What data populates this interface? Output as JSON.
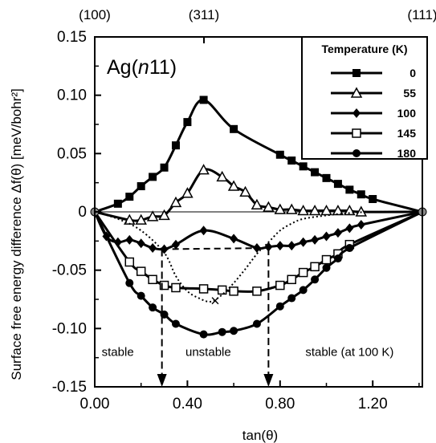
{
  "chart_data": {
    "type": "line",
    "sample_label_prefix": "Ag(",
    "sample_label_index": "n",
    "sample_label_suffix": "11)",
    "xlabel": "tan(θ)",
    "ylabel": "Surface free energy difference Δf(θ) [meV/bohr²]",
    "xlim": [
      0.0,
      1.4142
    ],
    "ylim": [
      -0.15,
      0.15
    ],
    "x_ticks": [
      {
        "value": 0.0,
        "label": "0.00"
      },
      {
        "value": 0.4,
        "label": "0.40"
      },
      {
        "value": 0.8,
        "label": "0.80"
      },
      {
        "value": 1.2,
        "label": "1.20"
      }
    ],
    "y_ticks": [
      {
        "value": 0.15,
        "label": "0.15"
      },
      {
        "value": 0.1,
        "label": "0.10"
      },
      {
        "value": 0.05,
        "label": "0.05"
      },
      {
        "value": 0.0,
        "label": "0"
      },
      {
        "value": -0.05,
        "label": "-0.05"
      },
      {
        "value": -0.1,
        "label": "-0.10"
      },
      {
        "value": -0.15,
        "label": "-0.15"
      }
    ],
    "top_labels": [
      {
        "x": 0.0,
        "label": "(100)"
      },
      {
        "x": 0.4714,
        "label": "(311)"
      },
      {
        "x": 1.4142,
        "label": "(111)"
      }
    ],
    "legend": {
      "title": "Temperature (K)",
      "position": "top-right"
    },
    "series": [
      {
        "name": "0",
        "marker": "square-filled",
        "style": "solid",
        "stroke_width": 3,
        "x": [
          0.0,
          0.1,
          0.15,
          0.2,
          0.25,
          0.3,
          0.35,
          0.4,
          0.47,
          0.6,
          0.8,
          0.85,
          0.9,
          0.95,
          1.0,
          1.05,
          1.1,
          1.15,
          1.2,
          1.4142
        ],
        "y": [
          0.0,
          0.007,
          0.013,
          0.022,
          0.03,
          0.038,
          0.057,
          0.077,
          0.096,
          0.071,
          0.049,
          0.044,
          0.039,
          0.034,
          0.029,
          0.024,
          0.019,
          0.015,
          0.011,
          0.0
        ]
      },
      {
        "name": "55",
        "marker": "triangle-open",
        "style": "solid",
        "stroke_width": 3,
        "x": [
          0.0,
          0.15,
          0.2,
          0.25,
          0.3,
          0.35,
          0.4,
          0.47,
          0.55,
          0.6,
          0.65,
          0.7,
          0.75,
          0.8,
          0.85,
          0.9,
          0.95,
          1.0,
          1.05,
          1.1,
          1.15,
          1.4142
        ],
        "y": [
          0.0,
          -0.007,
          -0.007,
          -0.004,
          -0.003,
          0.008,
          0.016,
          0.036,
          0.03,
          0.022,
          0.017,
          0.006,
          0.004,
          0.002,
          0.002,
          0.001,
          0.001,
          0.001,
          0.001,
          0.001,
          0.0,
          0.0
        ]
      },
      {
        "name": "100",
        "marker": "diamond-filled",
        "style": "solid",
        "stroke_width": 3,
        "x": [
          0.0,
          0.05,
          0.1,
          0.15,
          0.2,
          0.25,
          0.3,
          0.35,
          0.47,
          0.6,
          0.7,
          0.75,
          0.8,
          0.85,
          0.9,
          0.95,
          1.0,
          1.05,
          1.1,
          1.15,
          1.4142
        ],
        "y": [
          0.0,
          -0.021,
          -0.026,
          -0.024,
          -0.027,
          -0.031,
          -0.032,
          -0.028,
          -0.016,
          -0.023,
          -0.031,
          -0.03,
          -0.029,
          -0.029,
          -0.026,
          -0.024,
          -0.021,
          -0.018,
          -0.014,
          -0.011,
          0.0
        ]
      },
      {
        "name": "145",
        "marker": "square-open",
        "style": "solid",
        "stroke_width": 3,
        "x": [
          0.0,
          0.15,
          0.2,
          0.25,
          0.3,
          0.35,
          0.47,
          0.55,
          0.6,
          0.7,
          0.8,
          0.85,
          0.9,
          0.95,
          1.0,
          1.05,
          1.1,
          1.4142
        ],
        "y": [
          0.0,
          -0.043,
          -0.051,
          -0.058,
          -0.063,
          -0.065,
          -0.066,
          -0.067,
          -0.068,
          -0.068,
          -0.063,
          -0.058,
          -0.052,
          -0.047,
          -0.041,
          -0.036,
          -0.028,
          0.0
        ]
      },
      {
        "name": "180",
        "marker": "circle-filled",
        "style": "solid",
        "stroke_width": 3,
        "x": [
          0.0,
          0.15,
          0.2,
          0.25,
          0.3,
          0.35,
          0.47,
          0.55,
          0.6,
          0.7,
          0.8,
          0.85,
          0.9,
          0.95,
          1.0,
          1.05,
          1.1,
          1.4142
        ],
        "y": [
          0.0,
          -0.061,
          -0.072,
          -0.082,
          -0.088,
          -0.096,
          -0.105,
          -0.103,
          -0.102,
          -0.096,
          -0.081,
          -0.074,
          -0.067,
          -0.058,
          -0.048,
          -0.04,
          -0.031,
          0.0
        ]
      },
      {
        "name": "",
        "marker": "none",
        "style": "dotted",
        "stroke_width": 2,
        "x": [
          0.0,
          0.1,
          0.2,
          0.3,
          0.35,
          0.4,
          0.45,
          0.5,
          0.55,
          0.6,
          0.65,
          0.7,
          0.73,
          0.76,
          0.8,
          0.85,
          0.9,
          1.0,
          1.1,
          1.2,
          1.4142
        ],
        "y": [
          0.0,
          -0.006,
          -0.016,
          -0.035,
          -0.055,
          -0.068,
          -0.074,
          -0.077,
          -0.071,
          -0.061,
          -0.049,
          -0.036,
          -0.03,
          -0.024,
          -0.016,
          -0.01,
          -0.006,
          -0.003,
          -0.001,
          0.0,
          0.0
        ]
      }
    ],
    "common_tangent": {
      "x": [
        0.29,
        0.75
      ],
      "y": [
        -0.032,
        -0.031
      ]
    },
    "arrows": [
      {
        "x": 0.29,
        "y_from": -0.032,
        "y_to": -0.15
      },
      {
        "x": 0.75,
        "y_from": -0.031,
        "y_to": -0.15
      }
    ],
    "minimum_marker": {
      "x": 0.52,
      "y": -0.076,
      "symbol": "×"
    },
    "region_labels": [
      {
        "text": "stable",
        "x": 0.03,
        "y": -0.12
      },
      {
        "text": "unstable",
        "x": 0.49,
        "y": -0.12
      },
      {
        "text": "stable (at 100 K)",
        "x": 1.1,
        "y": -0.12
      }
    ]
  }
}
